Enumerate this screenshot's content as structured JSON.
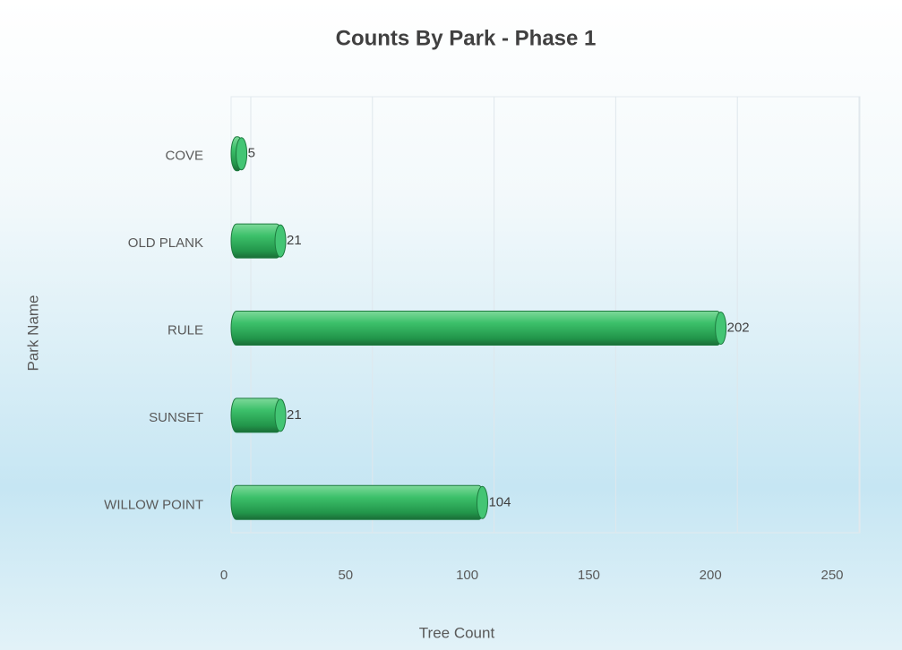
{
  "chart_data": {
    "type": "bar",
    "orientation": "horizontal",
    "title": "Counts By Park - Phase 1",
    "x_label": "Tree Count",
    "y_label": "Park Name",
    "categories": [
      "COVE",
      "OLD PLANK",
      "RULE",
      "SUNSET",
      "WILLOW POINT"
    ],
    "values": [
      5,
      21,
      202,
      21,
      104
    ],
    "color": "#2fb35c",
    "xlim": [
      0,
      250
    ],
    "xticks": [
      0,
      50,
      100,
      150,
      200,
      250
    ],
    "grid": true
  }
}
